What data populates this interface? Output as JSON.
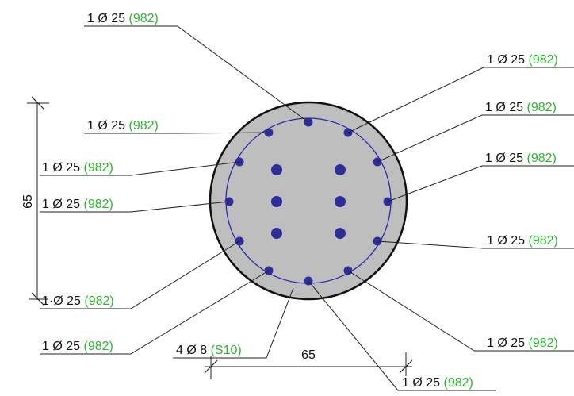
{
  "colors": {
    "section_fill": "#bebebe",
    "section_outline": "#111111",
    "stirrup": "#2a2aa6",
    "rebar": "#2e2e9a",
    "label_text": "#111111",
    "label_code": "#2db52d"
  },
  "dimensions": {
    "width": "65",
    "height": "65"
  },
  "labels": {
    "l_top": {
      "prefix": "1 Ø 25",
      "code": "982"
    },
    "r_1": {
      "prefix": "1 Ø 25",
      "code": "982"
    },
    "r_2": {
      "prefix": "1 Ø 25",
      "code": "982"
    },
    "r_3": {
      "prefix": "1 Ø 25",
      "code": "982"
    },
    "r_4": {
      "prefix": "1 Ø 25",
      "code": "982"
    },
    "r_5": {
      "prefix": "1 Ø 25",
      "code": "982"
    },
    "l_1": {
      "prefix": "1 Ø 25",
      "code": "982"
    },
    "l_2": {
      "prefix": "1 Ø 25",
      "code": "982"
    },
    "l_3": {
      "prefix": "1 Ø 25",
      "code": "982"
    },
    "l_4": {
      "prefix": "1·Ø 25",
      "code": "982"
    },
    "l_5": {
      "prefix": "1 Ø 25",
      "code": "982"
    },
    "stirrup": {
      "prefix": "4 Ø 8",
      "code": "S10"
    },
    "bottom": {
      "prefix": "1 Ø 25",
      "code": "982"
    }
  }
}
